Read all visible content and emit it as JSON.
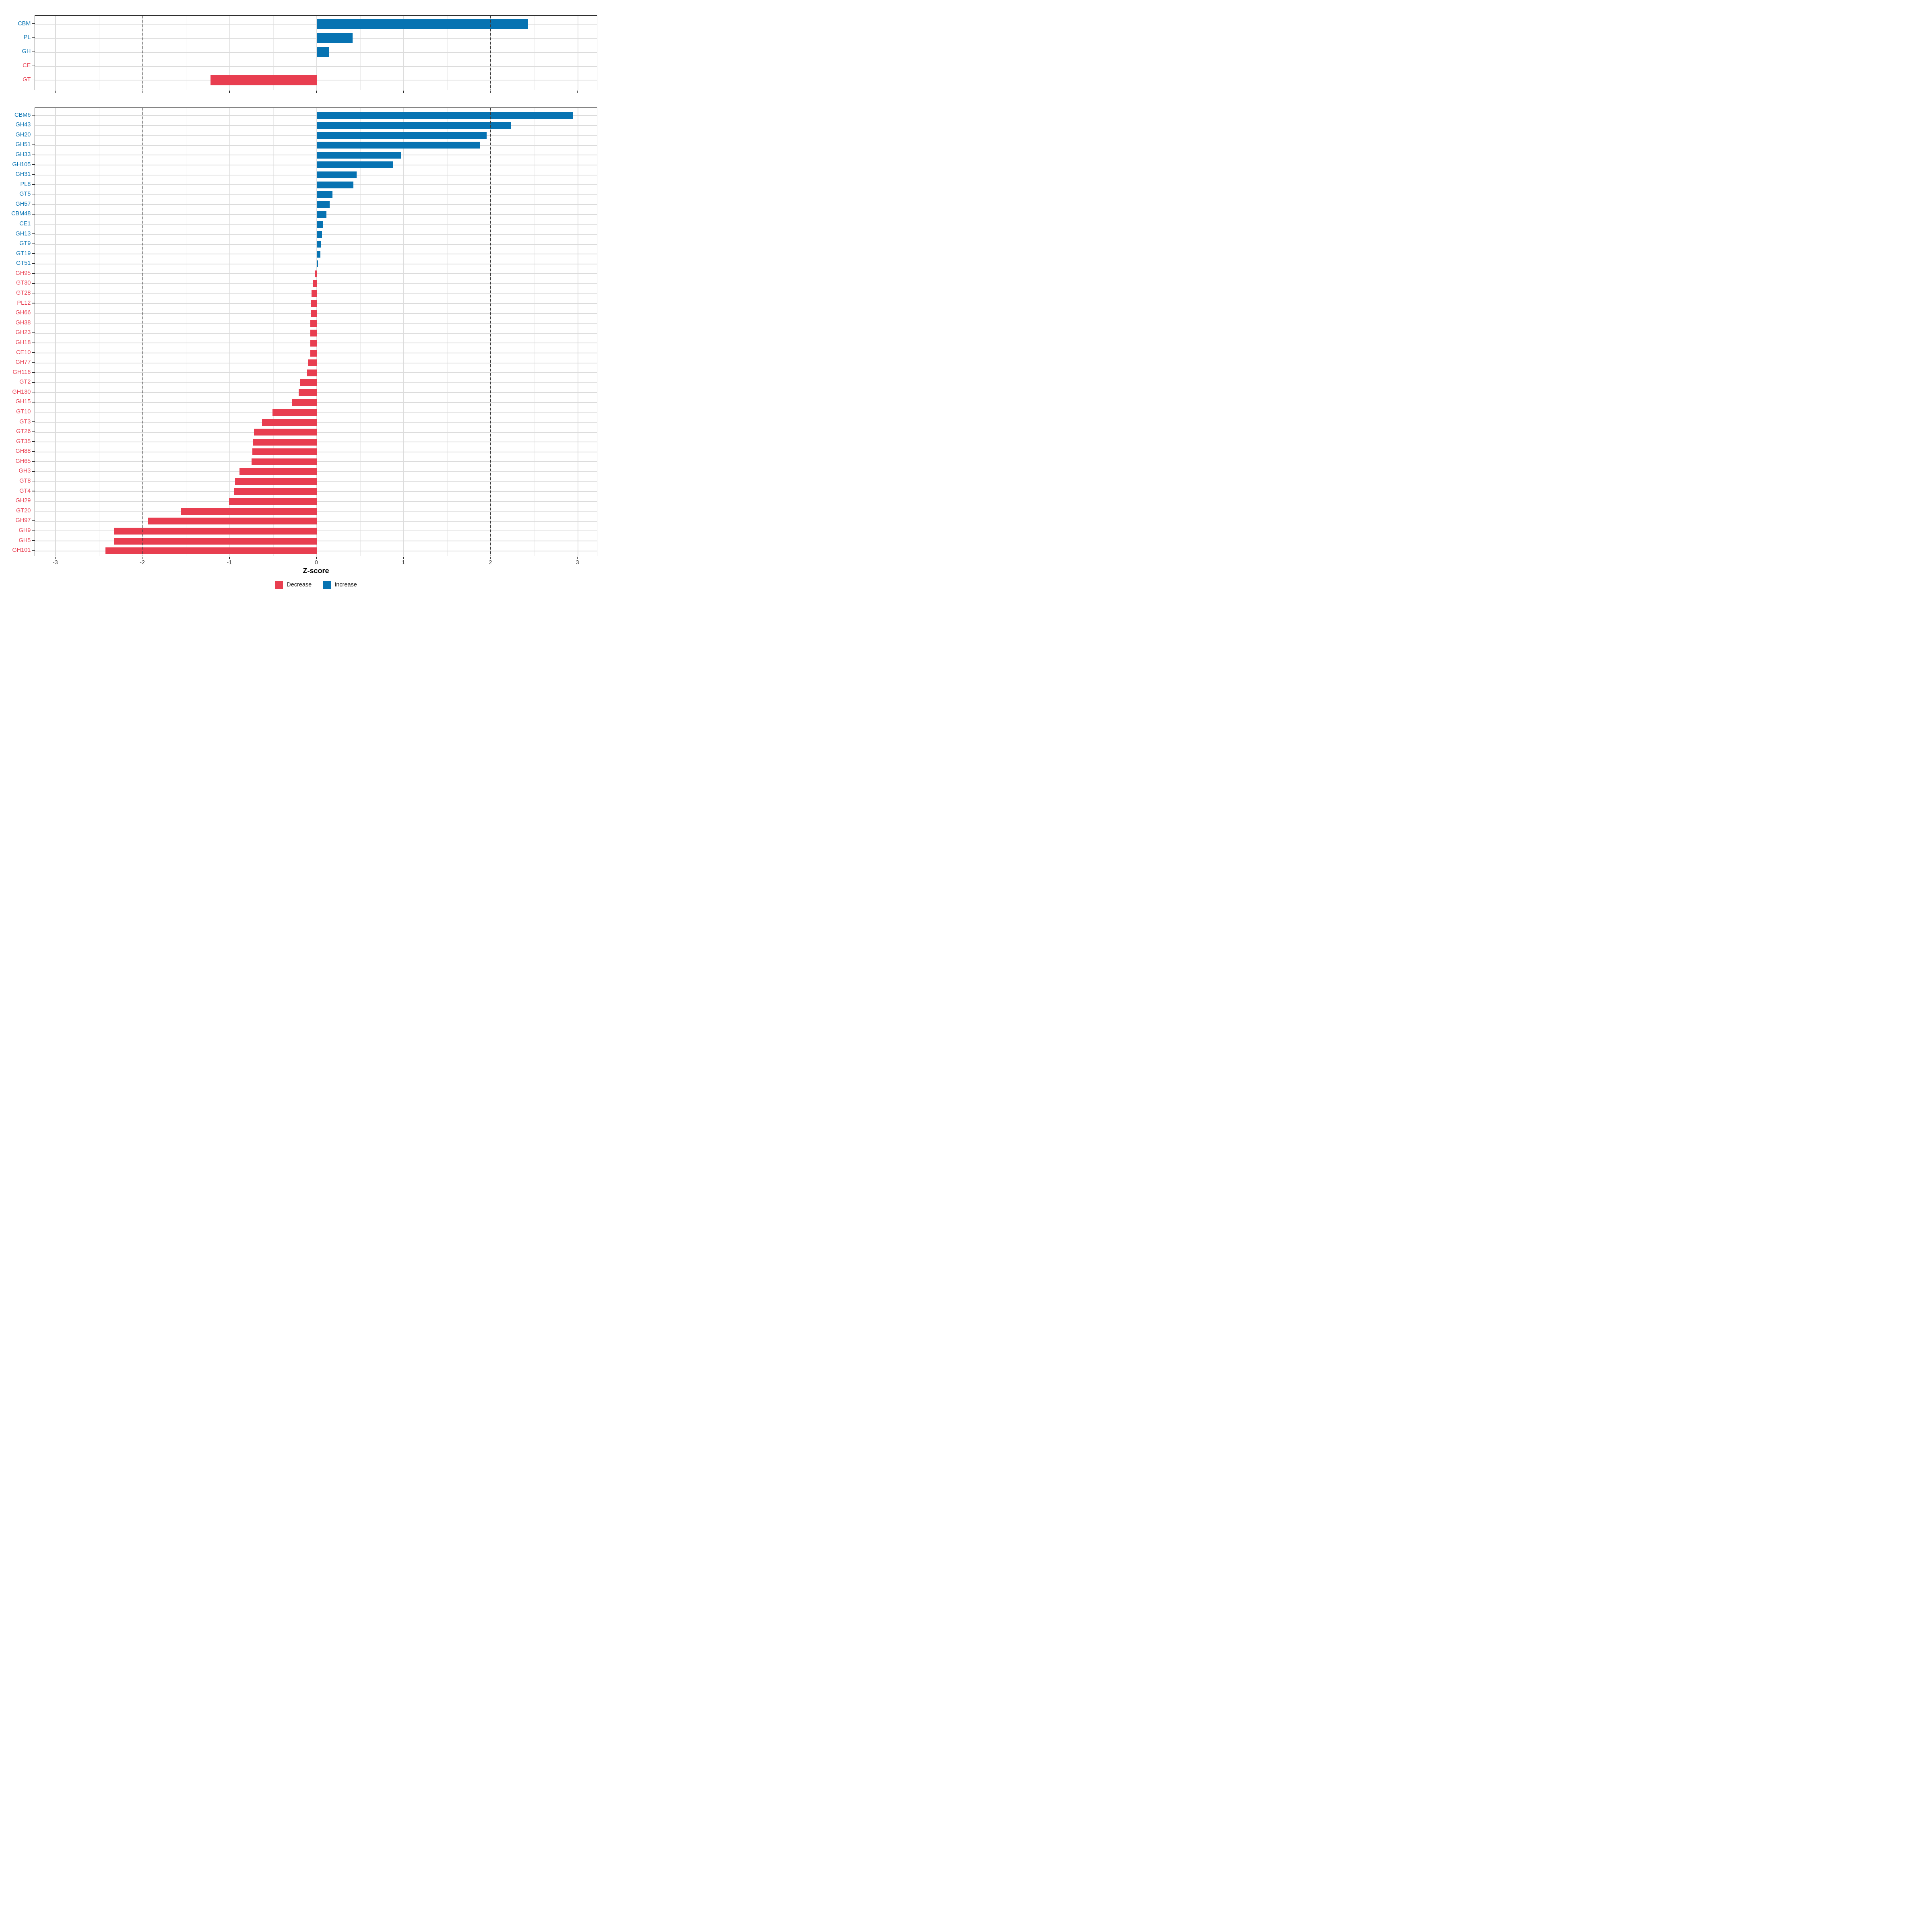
{
  "colors": {
    "increase": "#0773B2",
    "decrease": "#E83E50",
    "grid_major": "#dcdcdc",
    "grid_minor": "#ececec",
    "axis_text": "#4c4c4c",
    "panel_border": "#2d2d2d",
    "reference_line": "#3b3b3b",
    "background": "#ffffff"
  },
  "chart_data": {
    "type": "bar",
    "orientation": "horizontal",
    "title": "",
    "xlabel": "Z-score",
    "ylabel": "",
    "xlim": [
      -3.236,
      3.23
    ],
    "grid": "on",
    "x_ticks": [
      {
        "v": -3,
        "label": "-3"
      },
      {
        "v": -2,
        "label": "-2"
      },
      {
        "v": -1,
        "label": "-1"
      },
      {
        "v": 0,
        "label": "0"
      },
      {
        "v": 1,
        "label": "1"
      },
      {
        "v": 2,
        "label": "2"
      },
      {
        "v": 3,
        "label": "3"
      }
    ],
    "x_minor_ticks": [
      -2.5,
      -1.5,
      -0.5,
      0.5,
      1.5,
      2.5
    ],
    "reference_lines": {
      "values": [
        -2,
        2
      ],
      "style": "dashed"
    },
    "legend": {
      "position": "bottom",
      "entries": [
        {
          "key": "decrease",
          "label": "Decrease",
          "color": "#E83E50"
        },
        {
          "key": "increase",
          "label": "Increase",
          "color": "#0773B2"
        }
      ]
    },
    "panels": [
      {
        "name": "class_level",
        "rows": [
          {
            "label": "CBM",
            "value": 2.43,
            "direction": "increase"
          },
          {
            "label": "PL",
            "value": 0.41,
            "direction": "increase"
          },
          {
            "label": "GH",
            "value": 0.14,
            "direction": "increase"
          },
          {
            "label": "CE",
            "value": 0.0,
            "direction": "decrease"
          },
          {
            "label": "GT",
            "value": -1.22,
            "direction": "decrease"
          }
        ]
      },
      {
        "name": "family_level",
        "rows": [
          {
            "label": "CBM6",
            "value": 2.94,
            "direction": "increase"
          },
          {
            "label": "GH43",
            "value": 2.23,
            "direction": "increase"
          },
          {
            "label": "GH20",
            "value": 1.95,
            "direction": "increase"
          },
          {
            "label": "GH51",
            "value": 1.88,
            "direction": "increase"
          },
          {
            "label": "GH33",
            "value": 0.97,
            "direction": "increase"
          },
          {
            "label": "GH105",
            "value": 0.88,
            "direction": "increase"
          },
          {
            "label": "GH31",
            "value": 0.46,
            "direction": "increase"
          },
          {
            "label": "PL8",
            "value": 0.42,
            "direction": "increase"
          },
          {
            "label": "GT5",
            "value": 0.18,
            "direction": "increase"
          },
          {
            "label": "GH57",
            "value": 0.15,
            "direction": "increase"
          },
          {
            "label": "CBM48",
            "value": 0.11,
            "direction": "increase"
          },
          {
            "label": "CE1",
            "value": 0.07,
            "direction": "increase"
          },
          {
            "label": "GH13",
            "value": 0.058,
            "direction": "increase"
          },
          {
            "label": "GT9",
            "value": 0.045,
            "direction": "increase"
          },
          {
            "label": "GT19",
            "value": 0.04,
            "direction": "increase"
          },
          {
            "label": "GT51",
            "value": 0.012,
            "direction": "increase"
          },
          {
            "label": "GH95",
            "value": -0.025,
            "direction": "decrease"
          },
          {
            "label": "GT30",
            "value": -0.046,
            "direction": "decrease"
          },
          {
            "label": "GT28",
            "value": -0.06,
            "direction": "decrease"
          },
          {
            "label": "PL12",
            "value": -0.07,
            "direction": "decrease"
          },
          {
            "label": "GH66",
            "value": -0.071,
            "direction": "decrease"
          },
          {
            "label": "GH38",
            "value": -0.072,
            "direction": "decrease"
          },
          {
            "label": "GH23",
            "value": -0.073,
            "direction": "decrease"
          },
          {
            "label": "GH18",
            "value": -0.074,
            "direction": "decrease"
          },
          {
            "label": "CE10",
            "value": -0.075,
            "direction": "decrease"
          },
          {
            "label": "GH77",
            "value": -0.1,
            "direction": "decrease"
          },
          {
            "label": "GH116",
            "value": -0.11,
            "direction": "decrease"
          },
          {
            "label": "GT2",
            "value": -0.19,
            "direction": "decrease"
          },
          {
            "label": "GH130",
            "value": -0.21,
            "direction": "decrease"
          },
          {
            "label": "GH15",
            "value": -0.28,
            "direction": "decrease"
          },
          {
            "label": "GT10",
            "value": -0.51,
            "direction": "decrease"
          },
          {
            "label": "GT3",
            "value": -0.63,
            "direction": "decrease"
          },
          {
            "label": "GT26",
            "value": -0.72,
            "direction": "decrease"
          },
          {
            "label": "GT35",
            "value": -0.73,
            "direction": "decrease"
          },
          {
            "label": "GH88",
            "value": -0.74,
            "direction": "decrease"
          },
          {
            "label": "GH65",
            "value": -0.75,
            "direction": "decrease"
          },
          {
            "label": "GH3",
            "value": -0.89,
            "direction": "decrease"
          },
          {
            "label": "GT8",
            "value": -0.94,
            "direction": "decrease"
          },
          {
            "label": "GT4",
            "value": -0.95,
            "direction": "decrease"
          },
          {
            "label": "GH29",
            "value": -1.01,
            "direction": "decrease"
          },
          {
            "label": "GT20",
            "value": -1.56,
            "direction": "decrease"
          },
          {
            "label": "GH97",
            "value": -1.94,
            "direction": "decrease"
          },
          {
            "label": "GH9",
            "value": -2.33,
            "direction": "decrease"
          },
          {
            "label": "GH5",
            "value": -2.33,
            "direction": "decrease"
          },
          {
            "label": "GH101",
            "value": -2.43,
            "direction": "decrease"
          }
        ]
      }
    ]
  }
}
